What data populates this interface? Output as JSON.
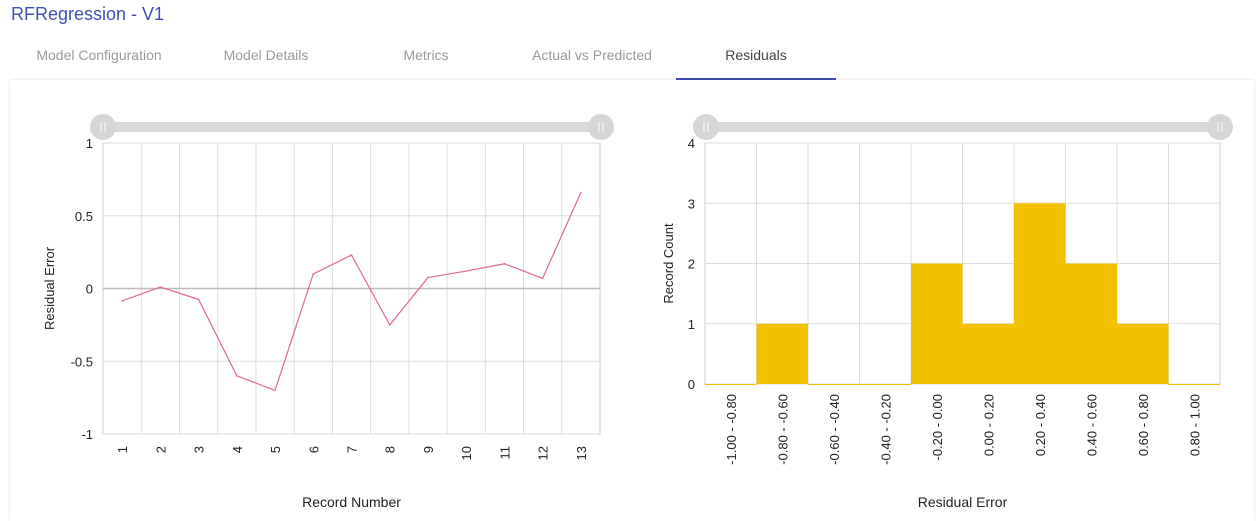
{
  "header": {
    "title": "RFRegression - V1"
  },
  "tabs": [
    {
      "label": "Model Configuration"
    },
    {
      "label": "Model Details"
    },
    {
      "label": "Metrics"
    },
    {
      "label": "Actual vs Predicted"
    },
    {
      "label": "Residuals",
      "active": true
    }
  ],
  "colors": {
    "accent": "#3f51b5",
    "line": "#e06a88",
    "bar": "#f2c200"
  },
  "chart_data": [
    {
      "type": "line",
      "title": "",
      "xlabel": "Record Number",
      "ylabel": "Residual Error",
      "ylim": [
        -1,
        1
      ],
      "yticks": [
        "1",
        "0.5",
        "0",
        "-0.5",
        "-1"
      ],
      "ytick_values": [
        1,
        0.5,
        0,
        -0.5,
        -1
      ],
      "categories": [
        "1",
        "2",
        "3",
        "4",
        "5",
        "6",
        "7",
        "8",
        "9",
        "10",
        "11",
        "12",
        "13"
      ],
      "values": [
        -0.085,
        0.01,
        -0.075,
        -0.6,
        -0.7,
        0.1,
        0.23,
        -0.25,
        0.075,
        0.12,
        0.17,
        0.07,
        0.66
      ]
    },
    {
      "type": "bar",
      "title": "",
      "xlabel": "Residual Error",
      "ylabel": "Record Count",
      "ylim": [
        0,
        4
      ],
      "yticks": [
        "4",
        "3",
        "2",
        "1",
        "0"
      ],
      "ytick_values": [
        4,
        3,
        2,
        1,
        0
      ],
      "categories": [
        "-1.00 - -0.80",
        "-0.80 - -0.60",
        "-0.60 - -0.40",
        "-0.40 - -0.20",
        "-0.20 - 0.00",
        "0.00 - 0.20",
        "0.20 - 0.40",
        "0.40 - 0.60",
        "0.60 - 0.80",
        "0.80 - 1.00"
      ],
      "values": [
        0,
        1,
        0,
        0,
        2,
        1,
        3,
        2,
        1,
        0
      ]
    }
  ]
}
